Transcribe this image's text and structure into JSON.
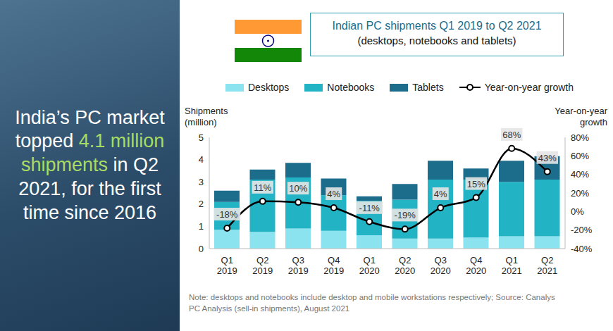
{
  "panel": {
    "text_before": "India’s PC market topped",
    "highlight": "4.1 million shipments",
    "text_after": "in Q2 2021, for the first time since 2016"
  },
  "chart_data": {
    "type": "bar",
    "title": "Indian PC shipments Q1 2019 to Q2 2021",
    "subtitle": "(desktops, notebooks and tablets)",
    "y_label": "Shipments (million)",
    "y2_label": "Year-on-year growth",
    "note": "Note: desktops and notebooks include desktop and mobile workstations respectively; Source: Canalys PC Analysis (sell-in shipments), August 2021",
    "categories": [
      "Q1 2019",
      "Q2 2019",
      "Q3 2019",
      "Q4 2019",
      "Q1 2020",
      "Q2 2020",
      "Q3 2020",
      "Q4 2020",
      "Q1 2021",
      "Q2 2021"
    ],
    "stacked": true,
    "grid": false,
    "legend": "top",
    "series": [
      {
        "name": "Desktops",
        "color": "#8ae3ee",
        "values": [
          0.85,
          0.75,
          0.9,
          0.8,
          0.6,
          0.45,
          0.45,
          0.5,
          0.55,
          0.55
        ]
      },
      {
        "name": "Notebooks",
        "color": "#22b3c4",
        "values": [
          1.25,
          2.35,
          2.3,
          1.6,
          1.55,
          1.75,
          2.65,
          2.6,
          2.45,
          2.55
        ]
      },
      {
        "name": "Tablets",
        "color": "#1c6d8c",
        "values": [
          0.5,
          0.45,
          0.65,
          0.75,
          0.2,
          0.7,
          0.85,
          0.5,
          0.95,
          1.05
        ]
      },
      {
        "name": "Year-on-year growth",
        "type": "line",
        "axis": "y2",
        "color": "#000000",
        "marker": "circle",
        "line_style": "solid",
        "data_labels": true,
        "values": [
          -18,
          11,
          10,
          4,
          -11,
          -19,
          4,
          15,
          68,
          43
        ],
        "value_labels": [
          "-18%",
          "11%",
          "10%",
          "4%",
          "-11%",
          "-19%",
          "4%",
          "15%",
          "68%",
          "43%"
        ]
      }
    ],
    "ylim": [
      0,
      5
    ],
    "yticks": [
      0,
      1,
      2,
      3,
      4,
      5
    ],
    "y2lim": [
      -40,
      80
    ],
    "y2ticks": [
      {
        "value": -40,
        "label": "-40%"
      },
      {
        "value": -20,
        "label": "-20%"
      },
      {
        "value": 0,
        "label": "0%"
      },
      {
        "value": 20,
        "label": "20%"
      },
      {
        "value": 40,
        "label": "40%"
      },
      {
        "value": 60,
        "label": "60%"
      },
      {
        "value": 80,
        "label": "80%"
      }
    ]
  }
}
